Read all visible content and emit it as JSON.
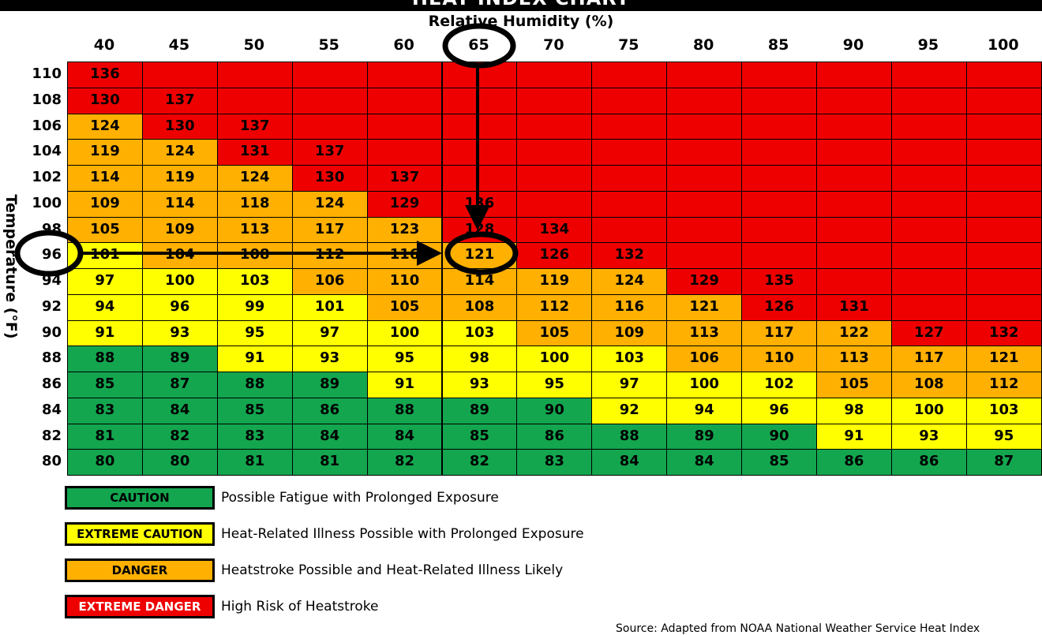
{
  "page": {
    "title": "HEAT INDEX CHART",
    "source": "Source: Adapted from NOAA National Weather Service Heat Index"
  },
  "chart_data": {
    "type": "heatmap",
    "title": "HEAT INDEX CHART",
    "xlabel": "Relative Humidity (%)",
    "ylabel": "Temperature (°F)",
    "x": [
      "40",
      "45",
      "50",
      "55",
      "60",
      "65",
      "70",
      "75",
      "80",
      "85",
      "90",
      "95",
      "100"
    ],
    "y": [
      "110",
      "108",
      "106",
      "104",
      "102",
      "100",
      "98",
      "96",
      "94",
      "92",
      "90",
      "88",
      "86",
      "84",
      "82",
      "80"
    ],
    "values": [
      [
        136,
        null,
        null,
        null,
        null,
        null,
        null,
        null,
        null,
        null,
        null,
        null,
        null
      ],
      [
        130,
        137,
        null,
        null,
        null,
        null,
        null,
        null,
        null,
        null,
        null,
        null,
        null
      ],
      [
        124,
        130,
        137,
        null,
        null,
        null,
        null,
        null,
        null,
        null,
        null,
        null,
        null
      ],
      [
        119,
        124,
        131,
        137,
        null,
        null,
        null,
        null,
        null,
        null,
        null,
        null,
        null
      ],
      [
        114,
        119,
        124,
        130,
        137,
        null,
        null,
        null,
        null,
        null,
        null,
        null,
        null
      ],
      [
        109,
        114,
        118,
        124,
        129,
        136,
        null,
        null,
        null,
        null,
        null,
        null,
        null
      ],
      [
        105,
        109,
        113,
        117,
        123,
        128,
        134,
        null,
        null,
        null,
        null,
        null,
        null
      ],
      [
        101,
        104,
        108,
        112,
        116,
        121,
        126,
        132,
        null,
        null,
        null,
        null,
        null
      ],
      [
        97,
        100,
        103,
        106,
        110,
        114,
        119,
        124,
        129,
        135,
        null,
        null,
        null
      ],
      [
        94,
        96,
        99,
        101,
        105,
        108,
        112,
        116,
        121,
        126,
        131,
        null,
        null
      ],
      [
        91,
        93,
        95,
        97,
        100,
        103,
        105,
        109,
        113,
        117,
        122,
        127,
        132
      ],
      [
        88,
        89,
        91,
        93,
        95,
        98,
        100,
        103,
        106,
        110,
        113,
        117,
        121
      ],
      [
        85,
        87,
        88,
        89,
        91,
        93,
        95,
        97,
        100,
        102,
        105,
        108,
        112
      ],
      [
        83,
        84,
        85,
        86,
        88,
        89,
        90,
        92,
        94,
        96,
        98,
        100,
        103
      ],
      [
        81,
        82,
        83,
        84,
        84,
        85,
        86,
        88,
        89,
        90,
        91,
        93,
        95
      ],
      [
        80,
        80,
        81,
        81,
        82,
        82,
        83,
        84,
        84,
        85,
        86,
        86,
        87
      ]
    ],
    "levels": [
      {
        "max": 90,
        "label": "CAUTION",
        "color": "#13a64f",
        "text_color": "#000000",
        "description": "Possible Fatigue with Prolonged Exposure"
      },
      {
        "max": 103,
        "label": "EXTREME CAUTION",
        "color": "#ffff00",
        "text_color": "#000000",
        "description": "Heat-Related Illness Possible with Prolonged Exposure"
      },
      {
        "max": 124,
        "label": "DANGER",
        "color": "#ffb000",
        "text_color": "#000000",
        "description": "Heatstroke Possible and Heat-Related Illness Likely"
      },
      {
        "max": 999,
        "label": "EXTREME DANGER",
        "color": "#ef0000",
        "text_color": "#000000",
        "description": "High Risk of Heatstroke"
      }
    ],
    "highlight": {
      "x": "65",
      "y": "96",
      "value": 121
    }
  }
}
